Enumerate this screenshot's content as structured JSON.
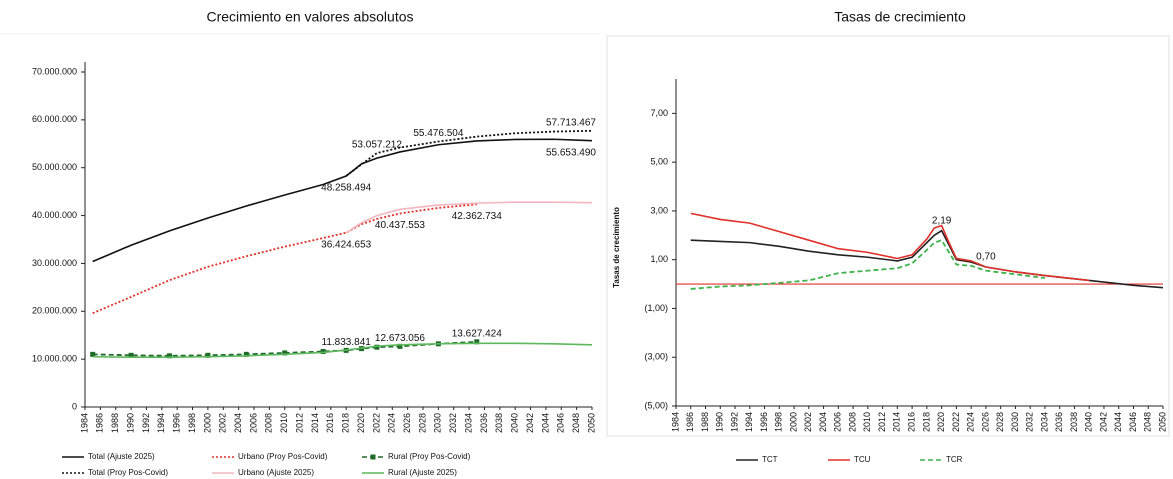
{
  "chart_data": [
    {
      "type": "line",
      "title": "Crecimiento en valores absolutos",
      "x": [
        1985,
        1990,
        1995,
        2000,
        2005,
        2010,
        2015,
        2018,
        2020,
        2022,
        2025,
        2030,
        2035,
        2040,
        2045,
        2050
      ],
      "xlim": [
        1984,
        2050
      ],
      "xticks": [
        1984,
        1986,
        1988,
        1990,
        1992,
        1994,
        1996,
        1998,
        2000,
        2002,
        2004,
        2006,
        2008,
        2010,
        2012,
        2014,
        2016,
        2018,
        2020,
        2022,
        2024,
        2026,
        2028,
        2030,
        2032,
        2034,
        2036,
        2038,
        2040,
        2042,
        2044,
        2046,
        2048,
        2050
      ],
      "ylim": [
        0,
        70000000
      ],
      "yticks": [
        0,
        {
          "value": 10000000,
          "label": "10.000.000"
        },
        {
          "value": 20000000,
          "label": "20.000.000"
        },
        {
          "value": 30000000,
          "label": "30.000.000"
        },
        {
          "value": 40000000,
          "label": "40.000.000"
        },
        {
          "value": 50000000,
          "label": "50.000.000"
        },
        {
          "value": 60000000,
          "label": "60.000.000"
        },
        {
          "value": 70000000,
          "label": "70.000.000"
        }
      ],
      "series": [
        {
          "name": "Total (Ajuste 2025)",
          "color": "#111111",
          "style": "solid",
          "values": [
            30400000,
            33800000,
            36800000,
            39500000,
            42000000,
            44300000,
            46500000,
            48258494,
            50800000,
            52000000,
            53300000,
            54800000,
            55600000,
            55900000,
            55950000,
            55653490
          ],
          "value_labels": [
            null,
            null,
            null,
            null,
            null,
            null,
            null,
            "48.258.494",
            null,
            null,
            null,
            null,
            null,
            null,
            null,
            "55.653.490"
          ]
        },
        {
          "name": "Total (Proy Pos-Covid)",
          "color": "#111111",
          "style": "dotted",
          "values": [
            null,
            null,
            null,
            null,
            null,
            null,
            null,
            48300000,
            50700000,
            53057212,
            54200000,
            55476504,
            56500000,
            57200000,
            57550000,
            57713467
          ],
          "value_labels": [
            null,
            null,
            null,
            null,
            null,
            null,
            null,
            null,
            null,
            "53.057.212",
            null,
            "55.476.504",
            null,
            null,
            null,
            "57.713.467"
          ]
        },
        {
          "name": "Urbano (Proy Pos-Covid)",
          "color": "#e0302a",
          "style": "dotted",
          "values": [
            19600000,
            23000000,
            26500000,
            29300000,
            31500000,
            33500000,
            35300000,
            36424653,
            38200000,
            39300000,
            40437553,
            41600000,
            42362734,
            null,
            null,
            null
          ],
          "value_labels": [
            null,
            null,
            null,
            null,
            null,
            null,
            null,
            "36.424.653",
            null,
            null,
            "40.437.553",
            null,
            "42.362.734",
            null,
            null,
            null
          ]
        },
        {
          "name": "Urbano (Ajuste 2025)",
          "color": "#f4b6c0",
          "style": "solid",
          "values": [
            null,
            null,
            null,
            null,
            null,
            null,
            null,
            36400000,
            38500000,
            40000000,
            41300000,
            42200000,
            42600000,
            42800000,
            42800000,
            42700000
          ]
        },
        {
          "name": "Rural (Proy Pos-Covid)",
          "color": "#1f6b2a",
          "style": "dashed",
          "marker": "square",
          "values": [
            11000000,
            10800000,
            10700000,
            10800000,
            11000000,
            11300000,
            11600000,
            11833841,
            12200000,
            12500000,
            12673056,
            13200000,
            13627424,
            null,
            null,
            null
          ],
          "value_labels": [
            null,
            null,
            null,
            null,
            null,
            null,
            null,
            "11.833.841",
            null,
            null,
            "12.673.056",
            null,
            "13.627.424",
            null,
            null,
            null
          ]
        },
        {
          "name": "Rural (Ajuste 2025)",
          "color": "#5cb85c",
          "style": "solid",
          "values": [
            10500000,
            10400000,
            10400000,
            10500000,
            10700000,
            11000000,
            11400000,
            11900000,
            12300000,
            12700000,
            13000000,
            13200000,
            13300000,
            13300000,
            13200000,
            13000000
          ]
        }
      ]
    },
    {
      "type": "line",
      "title": "Tasas de crecimiento",
      "y_label": "Tasas de crecimiento",
      "x": [
        1986,
        1990,
        1994,
        1998,
        2002,
        2006,
        2010,
        2014,
        2016,
        2018,
        2019,
        2020,
        2021,
        2022,
        2024,
        2026,
        2030,
        2034,
        2040,
        2046,
        2050
      ],
      "xlim": [
        1984,
        2050
      ],
      "xticks": [
        1984,
        1986,
        1988,
        1990,
        1992,
        1994,
        1996,
        1998,
        2000,
        2002,
        2004,
        2006,
        2008,
        2010,
        2012,
        2014,
        2016,
        2018,
        2020,
        2022,
        2024,
        2026,
        2028,
        2030,
        2032,
        2034,
        2036,
        2038,
        2040,
        2042,
        2044,
        2046,
        2048,
        2050
      ],
      "ylim": [
        -5,
        8
      ],
      "yticks": [
        {
          "value": -5,
          "label": "(5,00)"
        },
        {
          "value": -3,
          "label": "(3,00)"
        },
        {
          "value": -1,
          "label": "(1,00)"
        },
        {
          "value": 1,
          "label": "1,00"
        },
        {
          "value": 3,
          "label": "3,00"
        },
        {
          "value": 5,
          "label": "5,00"
        },
        {
          "value": 7,
          "label": "7,00"
        }
      ],
      "zero_line_color": "#e0302a",
      "series": [
        {
          "name": "TCT",
          "color": "#222222",
          "style": "solid",
          "values": [
            1.8,
            1.75,
            1.7,
            1.55,
            1.35,
            1.2,
            1.1,
            0.95,
            1.1,
            1.7,
            2.0,
            2.19,
            1.6,
            1.0,
            0.9,
            0.7,
            0.5,
            0.35,
            0.15,
            -0.05,
            -0.15
          ],
          "value_labels": [
            null,
            null,
            null,
            null,
            null,
            null,
            null,
            null,
            null,
            null,
            null,
            "2,19",
            null,
            null,
            null,
            "0,70",
            null,
            null,
            null,
            null,
            null
          ]
        },
        {
          "name": "TCU",
          "color": "#e0302a",
          "style": "solid",
          "values": [
            2.9,
            2.65,
            2.5,
            2.15,
            1.8,
            1.45,
            1.3,
            1.05,
            1.2,
            1.85,
            2.3,
            2.4,
            1.7,
            1.05,
            0.95,
            0.7,
            0.5,
            0.35,
            0.15,
            null,
            null
          ]
        },
        {
          "name": "TCR",
          "color": "#3cb44b",
          "style": "dashed",
          "values": [
            -0.2,
            -0.1,
            -0.05,
            0.05,
            0.15,
            0.45,
            0.55,
            0.65,
            0.85,
            1.4,
            1.7,
            1.8,
            1.3,
            0.8,
            0.75,
            0.55,
            0.4,
            0.25,
            null,
            null,
            null
          ]
        }
      ]
    }
  ]
}
